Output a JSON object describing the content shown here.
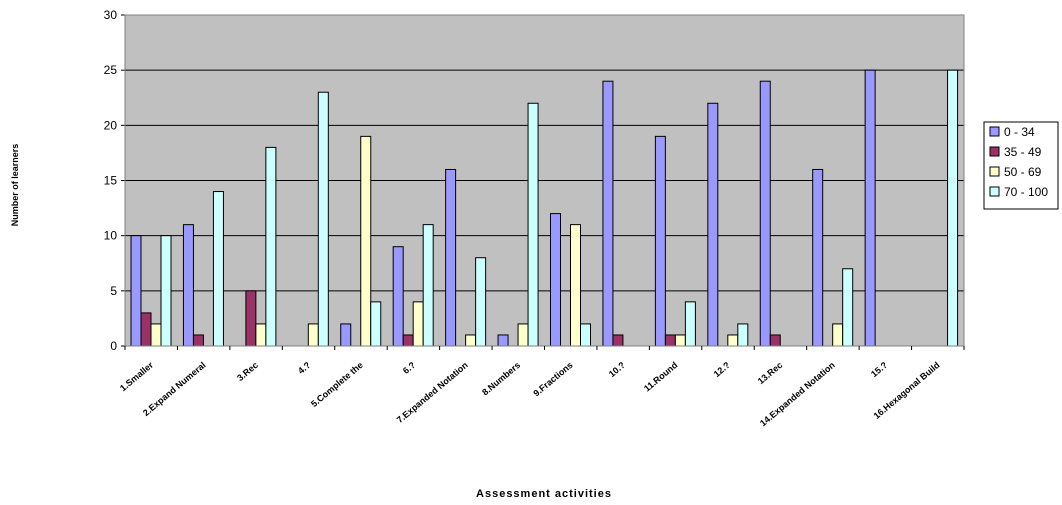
{
  "chart_data": {
    "type": "bar",
    "xlabel": "Assessment activities",
    "ylabel": "Number of learners",
    "ylim": [
      0,
      30
    ],
    "yticks": [
      0,
      5,
      10,
      15,
      20,
      25,
      30
    ],
    "grid": true,
    "legend_position": "right",
    "categories": [
      "1.Smaller",
      "2.Expand Numeral",
      "3.Rec",
      "4.?",
      "5.Complete the",
      "6.?",
      "7.Expanded Notation",
      "8.Numbers",
      "9.Fractions",
      "10.?",
      "11.Round",
      "12.?",
      "13.Rec",
      "14.Expanded Notation",
      "15.?",
      "16.Hexagonal Build"
    ],
    "series": [
      {
        "name": "0 - 34",
        "color": "#9999ff",
        "values": [
          10,
          11,
          0,
          0,
          2,
          9,
          16,
          1,
          12,
          24,
          19,
          22,
          24,
          16,
          25,
          0
        ]
      },
      {
        "name": "35 - 49",
        "color": "#993366",
        "values": [
          3,
          1,
          5,
          0,
          0,
          1,
          0,
          0,
          0,
          1,
          1,
          0,
          1,
          0,
          0,
          0
        ]
      },
      {
        "name": "50 - 69",
        "color": "#ffffcc",
        "values": [
          2,
          0,
          2,
          2,
          19,
          4,
          1,
          2,
          11,
          0,
          1,
          1,
          0,
          2,
          0,
          0
        ]
      },
      {
        "name": "70 - 100",
        "color": "#ccffff",
        "values": [
          10,
          14,
          18,
          23,
          4,
          11,
          8,
          22,
          2,
          0,
          4,
          2,
          0,
          7,
          0,
          25
        ]
      }
    ],
    "plot_background": "#c0c0c0"
  }
}
